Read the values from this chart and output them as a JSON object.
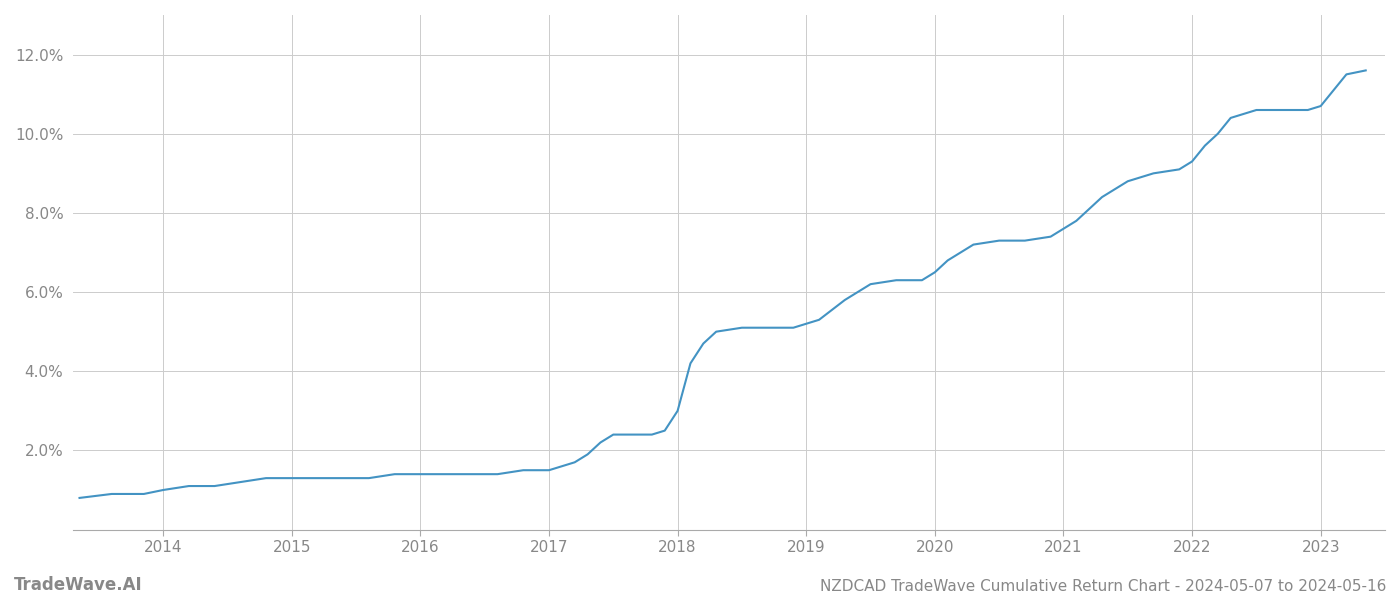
{
  "title": "NZDCAD TradeWave Cumulative Return Chart - 2024-05-07 to 2024-05-16",
  "watermark": "TradeWave.AI",
  "line_color": "#4393c3",
  "background_color": "#ffffff",
  "grid_color": "#cccccc",
  "x_years": [
    2014,
    2015,
    2016,
    2017,
    2018,
    2019,
    2020,
    2021,
    2022,
    2023
  ],
  "x_data": [
    2013.35,
    2013.6,
    2013.85,
    2014.0,
    2014.2,
    2014.4,
    2014.6,
    2014.8,
    2015.0,
    2015.2,
    2015.4,
    2015.6,
    2015.8,
    2016.0,
    2016.2,
    2016.4,
    2016.6,
    2016.8,
    2017.0,
    2017.1,
    2017.2,
    2017.3,
    2017.4,
    2017.5,
    2017.6,
    2017.7,
    2017.8,
    2017.9,
    2018.0,
    2018.1,
    2018.2,
    2018.3,
    2018.5,
    2018.7,
    2018.9,
    2019.1,
    2019.3,
    2019.5,
    2019.7,
    2019.9,
    2020.0,
    2020.1,
    2020.3,
    2020.5,
    2020.7,
    2020.9,
    2021.1,
    2021.3,
    2021.5,
    2021.7,
    2021.9,
    2022.0,
    2022.1,
    2022.2,
    2022.3,
    2022.5,
    2022.7,
    2022.9,
    2023.0,
    2023.1,
    2023.2,
    2023.35
  ],
  "y_data": [
    0.008,
    0.009,
    0.009,
    0.01,
    0.011,
    0.011,
    0.012,
    0.013,
    0.013,
    0.013,
    0.013,
    0.013,
    0.014,
    0.014,
    0.014,
    0.014,
    0.014,
    0.015,
    0.015,
    0.016,
    0.017,
    0.019,
    0.022,
    0.024,
    0.024,
    0.024,
    0.024,
    0.025,
    0.03,
    0.042,
    0.047,
    0.05,
    0.051,
    0.051,
    0.051,
    0.053,
    0.058,
    0.062,
    0.063,
    0.063,
    0.065,
    0.068,
    0.072,
    0.073,
    0.073,
    0.074,
    0.078,
    0.084,
    0.088,
    0.09,
    0.091,
    0.093,
    0.097,
    0.1,
    0.104,
    0.106,
    0.106,
    0.106,
    0.107,
    0.111,
    0.115,
    0.116
  ],
  "ylim": [
    0.0,
    0.13
  ],
  "xlim": [
    2013.3,
    2023.5
  ],
  "yticks": [
    0.02,
    0.04,
    0.06,
    0.08,
    0.1,
    0.12
  ],
  "ytick_labels": [
    "2.0%",
    "4.0%",
    "6.0%",
    "8.0%",
    "10.0%",
    "12.0%"
  ],
  "line_width": 1.5,
  "title_fontsize": 11,
  "watermark_fontsize": 12,
  "tick_fontsize": 11,
  "tick_color": "#888888",
  "title_color": "#555555"
}
